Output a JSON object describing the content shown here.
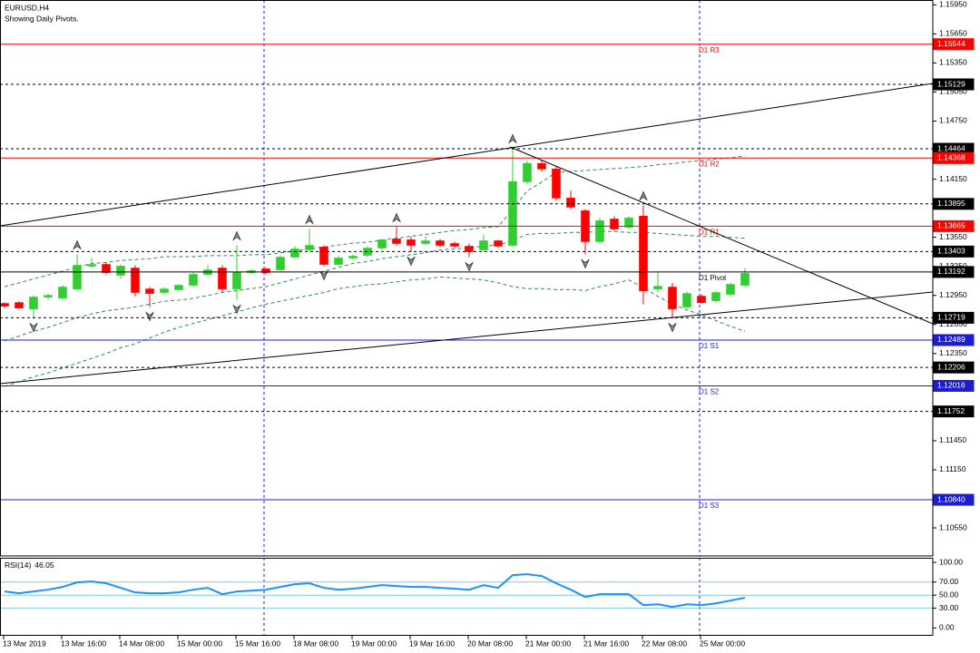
{
  "chart_data": [
    {
      "type": "candlestick",
      "title": "EURUSD,H4",
      "subtitle": "Showing Daily Pivots.",
      "categories": [
        "13 Mar 2019",
        null,
        null,
        null,
        "13 Mar 16:00",
        null,
        null,
        null,
        "14 Mar 08:00",
        null,
        null,
        null,
        "15 Mar 00:00",
        null,
        null,
        null,
        "15 Mar 16:00",
        null,
        null,
        null,
        "18 Mar 08:00",
        null,
        null,
        null,
        "19 Mar 00:00",
        null,
        null,
        null,
        "19 Mar 16:00",
        null,
        null,
        null,
        "20 Mar 08:00",
        null,
        null,
        null,
        "21 Mar 00:00",
        null,
        null,
        null,
        "21 Mar 16:00",
        null,
        null,
        null,
        "22 Mar 08:00",
        null,
        null,
        null,
        "25 Mar 00:00",
        null,
        null,
        null
      ],
      "open": [
        1.12867,
        1.12876,
        1.12811,
        1.12933,
        1.12923,
        1.13017,
        1.13252,
        1.1327,
        1.13158,
        1.13233,
        1.13017,
        1.1298,
        1.13008,
        1.13055,
        1.13167,
        1.13233,
        1.13017,
        1.13186,
        1.13224,
        1.13214,
        1.13345,
        1.1342,
        1.13449,
        1.1327,
        1.13336,
        1.13364,
        1.13439,
        1.13533,
        1.13524,
        1.13486,
        1.13514,
        1.13486,
        1.13458,
        1.1342,
        1.13514,
        1.13467,
        1.14124,
        1.14312,
        1.14255,
        1.13955,
        1.13824,
        1.13505,
        1.13739,
        1.13655,
        1.13768,
        1.13017,
        1.13036,
        1.1283,
        1.12942,
        1.12895,
        1.12961,
        1.13055
      ],
      "high": [
        1.1288,
        1.1289,
        1.1295,
        1.1297,
        1.13055,
        1.13374,
        1.13336,
        1.1329,
        1.1327,
        1.13261,
        1.13036,
        1.13036,
        1.13064,
        1.13186,
        1.13261,
        1.13261,
        1.13467,
        1.13224,
        1.13233,
        1.13364,
        1.13458,
        1.13636,
        1.13467,
        1.13355,
        1.13374,
        1.13458,
        1.13533,
        1.13655,
        1.1356,
        1.1356,
        1.13533,
        1.13505,
        1.13486,
        1.1358,
        1.13524,
        1.1447,
        1.1434,
        1.1434,
        1.1428,
        1.1403,
        1.1384,
        1.13749,
        1.13768,
        1.13768,
        1.1388,
        1.13186,
        1.1308,
        1.1299,
        1.12961,
        1.12998,
        1.1308,
        1.13233
      ],
      "low": [
        1.1282,
        1.12811,
        1.12717,
        1.12905,
        1.12905,
        1.12998,
        1.13233,
        1.13167,
        1.1312,
        1.12942,
        1.1283,
        1.12961,
        1.12998,
        1.13036,
        1.13158,
        1.1298,
        1.12905,
        1.13167,
        1.13167,
        1.13205,
        1.13336,
        1.13402,
        1.13252,
        1.1326,
        1.1332,
        1.13345,
        1.1342,
        1.13467,
        1.13402,
        1.13467,
        1.13449,
        1.13439,
        1.13345,
        1.13402,
        1.13439,
        1.13449,
        1.141,
        1.1423,
        1.1393,
        1.1384,
        1.13374,
        1.13486,
        1.1362,
        1.13636,
        1.12858,
        1.1298,
        1.12717,
        1.12811,
        1.12867,
        1.12876,
        1.12942,
        1.13036
      ],
      "close": [
        1.12839,
        1.1282,
        1.12933,
        1.12951,
        1.13036,
        1.13261,
        1.1327,
        1.13186,
        1.13252,
        1.1298,
        1.1297,
        1.13017,
        1.13055,
        1.13167,
        1.13214,
        1.13017,
        1.13186,
        1.13205,
        1.13186,
        1.13345,
        1.1343,
        1.13467,
        1.1327,
        1.13336,
        1.13355,
        1.13439,
        1.13524,
        1.13486,
        1.13467,
        1.13514,
        1.13467,
        1.13458,
        1.13402,
        1.13514,
        1.13458,
        1.14124,
        1.14312,
        1.14255,
        1.13955,
        1.13861,
        1.13505,
        1.13721,
        1.13636,
        1.13749,
        1.12998,
        1.13045,
        1.12811,
        1.1297,
        1.12876,
        1.1298,
        1.13064,
        1.13177
      ],
      "up_color": "#32cd32",
      "down_color": "#ff0000",
      "ylim": [
        1.1026,
        1.16
      ],
      "yticks": [
        {
          "value": 1.1595,
          "label": "1.15950"
        },
        {
          "value": 1.1565,
          "label": "1.15650"
        },
        {
          "value": 1.1535,
          "label": "1.15350"
        },
        {
          "value": 1.1505,
          "label": "1.15050"
        },
        {
          "value": 1.1475,
          "label": "1.14750"
        },
        {
          "value": 1.1415,
          "label": "1.14150"
        },
        {
          "value": 1.1355,
          "label": "1.13550"
        },
        {
          "value": 1.1325,
          "label": "1.13250"
        },
        {
          "value": 1.1295,
          "label": "1.12950"
        },
        {
          "value": 1.1265,
          "label": "1.12650"
        },
        {
          "value": 1.1235,
          "label": "1.12350"
        },
        {
          "value": 1.1145,
          "label": "1.11450"
        },
        {
          "value": 1.1115,
          "label": "1.11150"
        },
        {
          "value": 1.1055,
          "label": "1.10550"
        }
      ],
      "levels": [
        {
          "value": 1.15544,
          "label": "1.15544",
          "name": "D1 R3",
          "color": "#ff0000",
          "style": "solid"
        },
        {
          "value": 1.15129,
          "label": "1.15129",
          "color": "#000000",
          "style": "dash"
        },
        {
          "value": 1.14464,
          "label": "1.14464",
          "color": "#000000",
          "style": "dash"
        },
        {
          "value": 1.14368,
          "label": "1.14368",
          "name": "D1 R2",
          "color": "#ff0000",
          "style": "solid"
        },
        {
          "value": 1.13895,
          "label": "1.13895",
          "color": "#000000",
          "style": "dash"
        },
        {
          "value": 1.13665,
          "label": "1.13665",
          "name": "D1 R1",
          "color": "#ff0000",
          "style": "solid"
        },
        {
          "value": 1.13403,
          "label": "1.13403",
          "color": "#000000",
          "style": "dash"
        },
        {
          "value": 1.13192,
          "label": "1.13192",
          "name": "D1 Pivot",
          "color": "#000000",
          "style": "solid"
        },
        {
          "value": 1.12719,
          "label": "1.12719",
          "color": "#000000",
          "style": "dash"
        },
        {
          "value": 1.12489,
          "label": "1.12489",
          "name": "D1 S1",
          "color": "#1c1cd0",
          "style": "solid"
        },
        {
          "value": 1.12206,
          "label": "1.12206",
          "color": "#000000",
          "style": "dash"
        },
        {
          "value": 1.12016,
          "label": "1.12016",
          "name": "D1 S2",
          "color": "#1c1cd0",
          "style": "solid"
        },
        {
          "value": 1.11752,
          "label": "1.11752",
          "color": "#000000",
          "style": "dash"
        },
        {
          "value": 1.1084,
          "label": "1.10840",
          "name": "D1 S3",
          "color": "#1c1cd0",
          "style": "solid"
        }
      ],
      "bands": [
        {
          "color": "#2e8b57",
          "values": [
            1.1304,
            1.1308,
            1.1312,
            1.1316,
            1.132,
            1.1324,
            1.1328,
            1.1329,
            1.1331,
            1.1332,
            1.1333,
            1.1335,
            1.1335,
            1.1335,
            1.1336,
            1.1336,
            1.1336,
            1.1337,
            1.1337,
            1.1339,
            1.1341,
            1.1343,
            1.1345,
            1.1347,
            1.1349,
            1.135,
            1.1352,
            1.1354,
            1.1356,
            1.1358,
            1.136,
            1.1362,
            1.1363,
            1.1365,
            1.1366,
            1.1384,
            1.1403,
            1.1412,
            1.1422,
            1.1423,
            1.1424,
            1.1425,
            1.1426,
            1.1427,
            1.1428,
            1.143,
            1.1431,
            1.1433,
            1.1434,
            1.1436,
            1.1437,
            1.1439
          ]
        },
        {
          "color": "#2e8b57",
          "values": [
            1.1248,
            1.1253,
            1.1258,
            1.1262,
            1.1267,
            1.1272,
            1.1276,
            1.1279,
            1.1281,
            1.1283,
            1.1286,
            1.1289,
            1.129,
            1.1292,
            1.1295,
            1.1298,
            1.13,
            1.1302,
            1.1304,
            1.1308,
            1.1312,
            1.1316,
            1.132,
            1.1324,
            1.1328,
            1.133,
            1.1333,
            1.1335,
            1.1337,
            1.1339,
            1.1342,
            1.1343,
            1.1344,
            1.1346,
            1.1347,
            1.1352,
            1.1358,
            1.1359,
            1.1359,
            1.136,
            1.136,
            1.1361,
            1.1361,
            1.136,
            1.136,
            1.1359,
            1.1358,
            1.1357,
            1.1356,
            1.1356,
            1.1355,
            1.1354
          ]
        },
        {
          "color": "#2e8b57",
          "values": [
            1.1201,
            1.1206,
            1.1211,
            1.1215,
            1.122,
            1.1225,
            1.123,
            1.1235,
            1.1241,
            1.1245,
            1.1251,
            1.1257,
            1.1262,
            1.1266,
            1.127,
            1.1274,
            1.1278,
            1.1282,
            1.1286,
            1.1289,
            1.1292,
            1.1295,
            1.1298,
            1.1302,
            1.1304,
            1.1306,
            1.1307,
            1.1309,
            1.1311,
            1.1312,
            1.1314,
            1.1313,
            1.1312,
            1.1311,
            1.1308,
            1.1304,
            1.1302,
            1.1302,
            1.1301,
            1.1301,
            1.13,
            1.1304,
            1.1307,
            1.1311,
            1.1303,
            1.1294,
            1.1286,
            1.128,
            1.1275,
            1.1269,
            1.1263,
            1.1258
          ]
        }
      ],
      "fractals_up": [
        null,
        null,
        null,
        null,
        null,
        1.13374,
        null,
        null,
        null,
        null,
        null,
        null,
        null,
        null,
        null,
        null,
        1.13467,
        null,
        null,
        null,
        null,
        1.13636,
        null,
        null,
        null,
        null,
        null,
        1.13655,
        null,
        null,
        null,
        null,
        null,
        null,
        null,
        1.1447,
        null,
        null,
        null,
        null,
        null,
        null,
        null,
        null,
        1.1388,
        null,
        null,
        null,
        null,
        null,
        null,
        null
      ],
      "fractals_down": [
        null,
        null,
        1.12717,
        null,
        null,
        null,
        null,
        null,
        null,
        null,
        1.1283,
        null,
        null,
        null,
        null,
        null,
        1.12905,
        null,
        null,
        null,
        null,
        null,
        1.13252,
        null,
        null,
        null,
        null,
        null,
        1.13402,
        null,
        null,
        null,
        1.13345,
        null,
        null,
        null,
        null,
        null,
        null,
        null,
        1.13374,
        null,
        null,
        null,
        null,
        null,
        1.12717,
        null,
        null,
        null,
        null,
        null
      ],
      "fractal_color": "#8a8a8a"
    },
    {
      "type": "line",
      "name": "RSI(14)",
      "values": [
        55.6,
        52.8,
        55.6,
        58.3,
        62.5,
        69.4,
        70.8,
        68.1,
        61.1,
        54.2,
        52.8,
        52.8,
        54.2,
        58.3,
        61.1,
        51.4,
        55.6,
        56.9,
        58.3,
        62.5,
        66.7,
        68.1,
        61.1,
        58.3,
        59.7,
        62.5,
        65.3,
        63.9,
        62.5,
        62.5,
        61.1,
        59.7,
        58.3,
        65.3,
        61.1,
        80.6,
        81.9,
        79.2,
        68.1,
        58.3,
        47.2,
        51.4,
        51.4,
        51.4,
        34.7,
        36.1,
        31.9,
        36.1,
        34.7,
        37.5,
        41.7,
        46.05
      ],
      "color": "#1e90ff",
      "ylim": [
        -12,
        107
      ],
      "yticks": [
        {
          "value": 100,
          "label": "100.00"
        },
        {
          "value": 70,
          "label": "70.00"
        },
        {
          "value": 50,
          "label": "50.00"
        },
        {
          "value": 30,
          "label": "30.00"
        },
        {
          "value": 0,
          "label": "0.00"
        }
      ],
      "levels": [
        70,
        50,
        30
      ],
      "level_color": "#7ec8e8"
    }
  ]
}
